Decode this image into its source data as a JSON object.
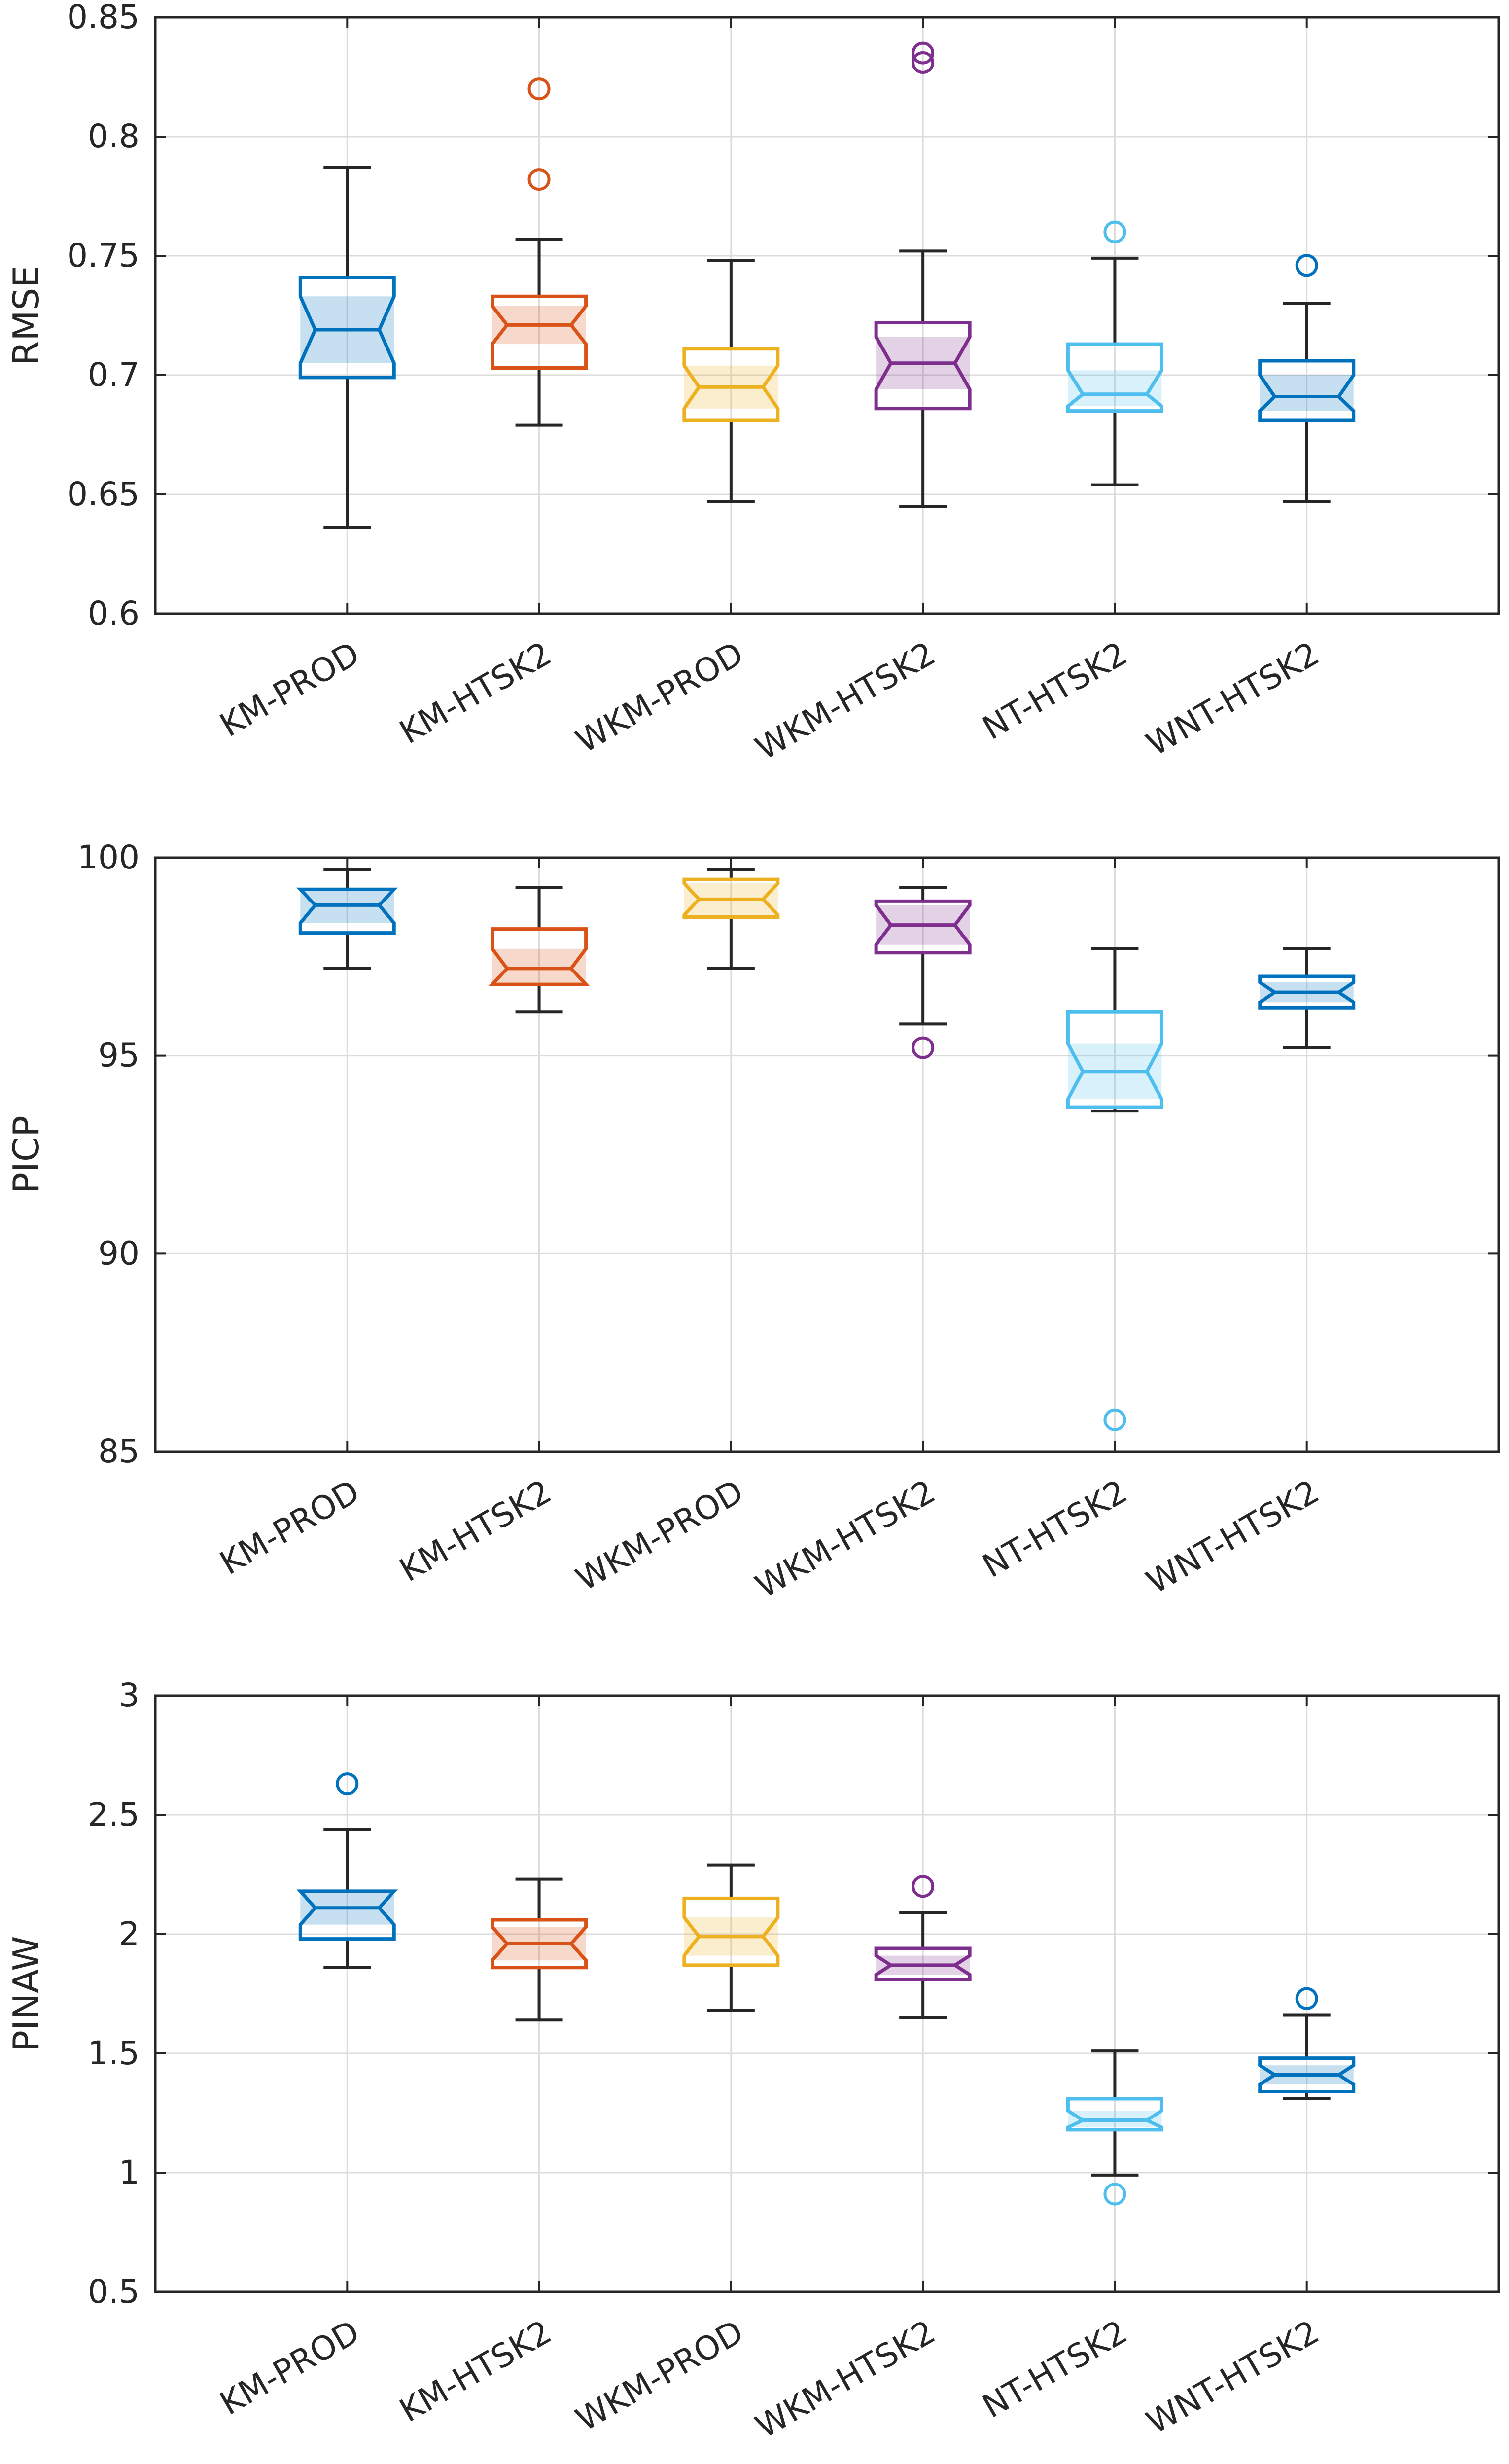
{
  "colors": {
    "KM-PROD": "#0072BD",
    "KM-HTSK2": "#D95319",
    "WKM-PROD": "#EDB120",
    "WKM-HTSK2": "#7E2F8E",
    "NT-HTSK2": "#4DBEEE",
    "WNT-HTSK2": "#0072BD",
    "whisker": "#262626",
    "grid": "#dcdcdc",
    "axis": "#262626"
  },
  "chart_data": [
    {
      "type": "boxplot",
      "ylabel": "RMSE",
      "ylim": [
        0.6,
        0.85
      ],
      "yticks": [
        "0.6",
        "0.65",
        "0.7",
        "0.75",
        "0.8",
        "0.85"
      ],
      "categories": [
        "KM-PROD",
        "KM-HTSK2",
        "WKM-PROD",
        "WKM-HTSK2",
        "NT-HTSK2",
        "WNT-HTSK2"
      ],
      "boxes": [
        {
          "name": "KM-PROD",
          "min": 0.636,
          "q1": 0.699,
          "notch_low": 0.705,
          "median": 0.719,
          "notch_high": 0.733,
          "q3": 0.741,
          "max": 0.787,
          "outliers": []
        },
        {
          "name": "KM-HTSK2",
          "min": 0.679,
          "q1": 0.703,
          "notch_low": 0.713,
          "median": 0.721,
          "notch_high": 0.729,
          "q3": 0.733,
          "max": 0.757,
          "outliers": [
            0.782,
            0.82
          ]
        },
        {
          "name": "WKM-PROD",
          "min": 0.647,
          "q1": 0.681,
          "notch_low": 0.686,
          "median": 0.695,
          "notch_high": 0.704,
          "q3": 0.711,
          "max": 0.748,
          "outliers": []
        },
        {
          "name": "WKM-HTSK2",
          "min": 0.645,
          "q1": 0.686,
          "notch_low": 0.694,
          "median": 0.705,
          "notch_high": 0.716,
          "q3": 0.722,
          "max": 0.752,
          "outliers": [
            0.831,
            0.835
          ]
        },
        {
          "name": "NT-HTSK2",
          "min": 0.654,
          "q1": 0.685,
          "notch_low": 0.687,
          "median": 0.692,
          "notch_high": 0.702,
          "q3": 0.713,
          "max": 0.749,
          "outliers": [
            0.76
          ]
        },
        {
          "name": "WNT-HTSK2",
          "min": 0.647,
          "q1": 0.681,
          "notch_low": 0.685,
          "median": 0.691,
          "notch_high": 0.7,
          "q3": 0.706,
          "max": 0.73,
          "outliers": [
            0.746
          ]
        }
      ]
    },
    {
      "type": "boxplot",
      "ylabel": "PICP",
      "ylim": [
        85,
        100
      ],
      "yticks": [
        "85",
        "90",
        "95",
        "100"
      ],
      "categories": [
        "KM-PROD",
        "KM-HTSK2",
        "WKM-PROD",
        "WKM-HTSK2",
        "NT-HTSK2",
        "WNT-HTSK2"
      ],
      "boxes": [
        {
          "name": "KM-PROD",
          "min": 97.2,
          "q1": 98.1,
          "notch_low": 98.35,
          "median": 98.8,
          "notch_high": 99.2,
          "q3": 99.2,
          "max": 99.7,
          "outliers": []
        },
        {
          "name": "KM-HTSK2",
          "min": 96.1,
          "q1": 96.8,
          "notch_low": 96.8,
          "median": 97.2,
          "notch_high": 97.7,
          "q3": 98.2,
          "max": 99.25,
          "outliers": []
        },
        {
          "name": "WKM-PROD",
          "min": 97.2,
          "q1": 98.5,
          "notch_low": 98.55,
          "median": 98.95,
          "notch_high": 99.35,
          "q3": 99.45,
          "max": 99.7,
          "outliers": []
        },
        {
          "name": "WKM-HTSK2",
          "min": 95.8,
          "q1": 97.6,
          "notch_low": 97.8,
          "median": 98.3,
          "notch_high": 98.8,
          "q3": 98.9,
          "max": 99.25,
          "outliers": [
            95.2
          ]
        },
        {
          "name": "NT-HTSK2",
          "min": 93.6,
          "q1": 93.7,
          "notch_low": 93.9,
          "median": 94.6,
          "notch_high": 95.3,
          "q3": 96.1,
          "max": 97.7,
          "outliers": [
            85.8
          ]
        },
        {
          "name": "WNT-HTSK2",
          "min": 95.2,
          "q1": 96.2,
          "notch_low": 96.35,
          "median": 96.6,
          "notch_high": 96.85,
          "q3": 97.0,
          "max": 97.7,
          "outliers": []
        }
      ]
    },
    {
      "type": "boxplot",
      "ylabel": "PINAW",
      "ylim": [
        0.5,
        3
      ],
      "yticks": [
        "0.5",
        "1",
        "1.5",
        "2",
        "2.5",
        "3"
      ],
      "categories": [
        "KM-PROD",
        "KM-HTSK2",
        "WKM-PROD",
        "WKM-HTSK2",
        "NT-HTSK2",
        "WNT-HTSK2"
      ],
      "boxes": [
        {
          "name": "KM-PROD",
          "min": 1.86,
          "q1": 1.98,
          "notch_low": 2.04,
          "median": 2.11,
          "notch_high": 2.18,
          "q3": 2.18,
          "max": 2.44,
          "outliers": [
            2.63
          ]
        },
        {
          "name": "KM-HTSK2",
          "min": 1.64,
          "q1": 1.86,
          "notch_low": 1.89,
          "median": 1.96,
          "notch_high": 2.03,
          "q3": 2.06,
          "max": 2.23,
          "outliers": []
        },
        {
          "name": "WKM-PROD",
          "min": 1.68,
          "q1": 1.87,
          "notch_low": 1.91,
          "median": 1.99,
          "notch_high": 2.07,
          "q3": 2.15,
          "max": 2.29,
          "outliers": []
        },
        {
          "name": "WKM-HTSK2",
          "min": 1.65,
          "q1": 1.81,
          "notch_low": 1.83,
          "median": 1.87,
          "notch_high": 1.91,
          "q3": 1.94,
          "max": 2.09,
          "outliers": [
            2.2
          ]
        },
        {
          "name": "NT-HTSK2",
          "min": 0.99,
          "q1": 1.18,
          "notch_low": 1.19,
          "median": 1.22,
          "notch_high": 1.26,
          "q3": 1.31,
          "max": 1.51,
          "outliers": [
            0.91
          ]
        },
        {
          "name": "WNT-HTSK2",
          "min": 1.31,
          "q1": 1.34,
          "notch_low": 1.37,
          "median": 1.41,
          "notch_high": 1.45,
          "q3": 1.48,
          "max": 1.66,
          "outliers": [
            1.73
          ]
        }
      ]
    }
  ]
}
